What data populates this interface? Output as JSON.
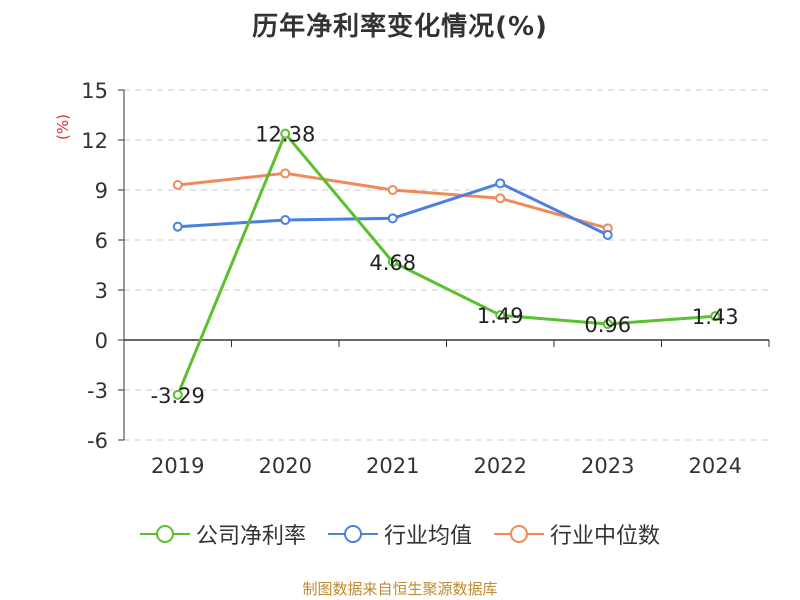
{
  "chart_data": {
    "type": "line",
    "title": "历年净利率变化情况(%)",
    "ylabel": "(%)",
    "categories": [
      "2019",
      "2020",
      "2021",
      "2022",
      "2023",
      "2024"
    ],
    "ylim": [
      -6,
      15
    ],
    "yticks": [
      15,
      12,
      9,
      6,
      3,
      0,
      -3,
      -6
    ],
    "ytick_labels": [
      "15",
      "12",
      "9",
      "6",
      "3",
      "0",
      "-3",
      "-6"
    ],
    "grid": "dashed horizontal",
    "legend_position": "bottom",
    "series": [
      {
        "name": "公司净利率",
        "color": "#5ac02f",
        "values": [
          -3.29,
          12.38,
          4.68,
          1.49,
          0.96,
          1.43
        ],
        "value_labels": [
          "-3.29",
          "12.38",
          "4.68",
          "1.49",
          "0.96",
          "1.43"
        ]
      },
      {
        "name": "行业均值",
        "color": "#4a80e0",
        "values": [
          6.8,
          7.2,
          7.3,
          9.4,
          6.3,
          null
        ]
      },
      {
        "name": "行业中位数",
        "color": "#f08a5a",
        "values": [
          9.3,
          10.0,
          9.0,
          8.5,
          6.7,
          null
        ]
      }
    ]
  },
  "footer": {
    "source": "制图数据来自恒生聚源数据库"
  }
}
